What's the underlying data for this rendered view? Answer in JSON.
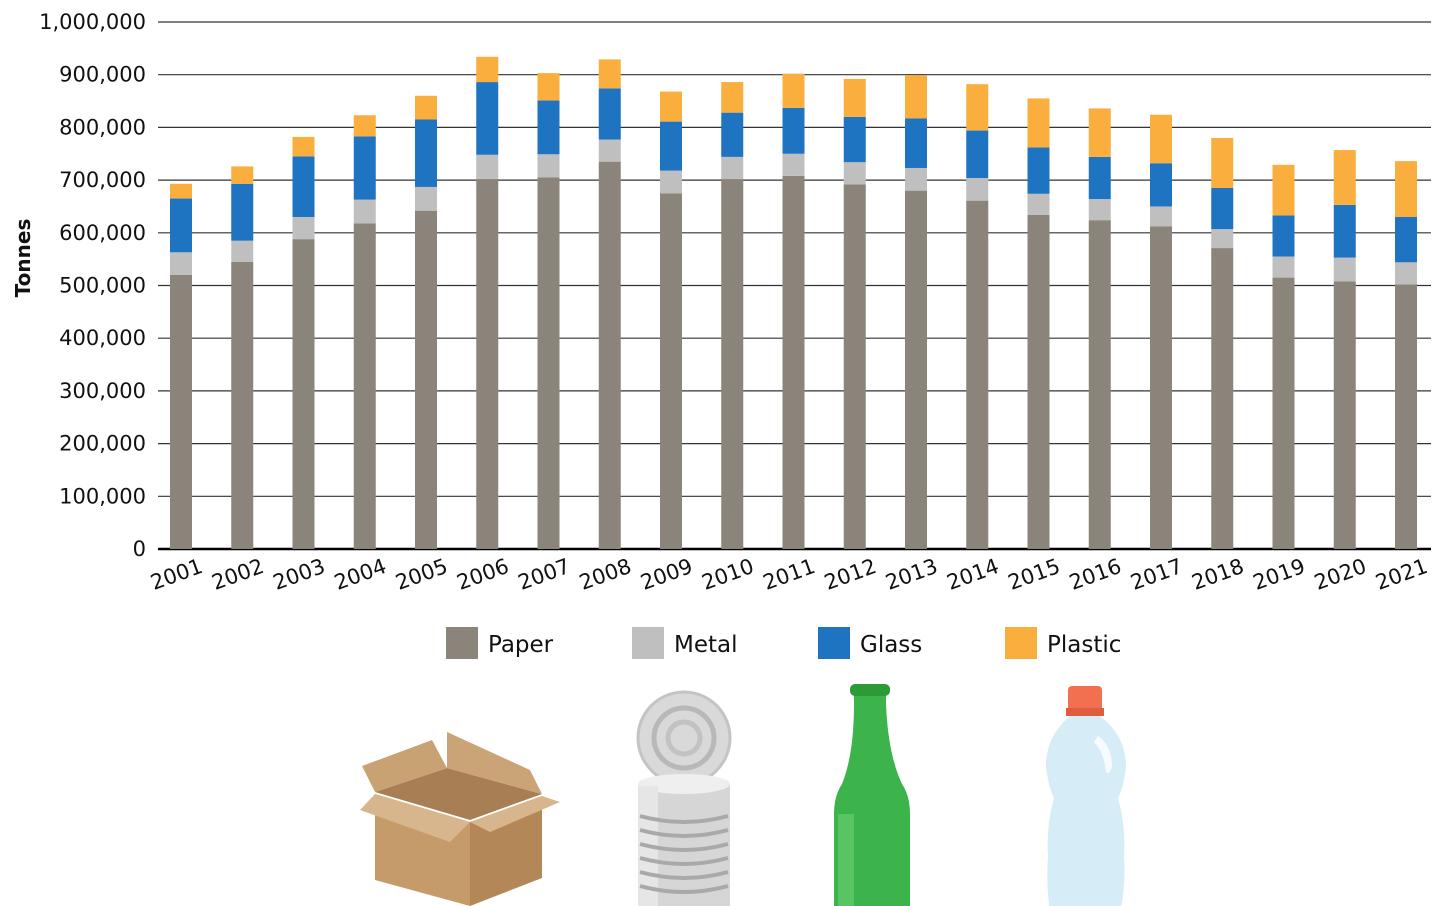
{
  "chart_data": {
    "type": "bar",
    "stacked": true,
    "title": "",
    "xlabel": "",
    "ylabel": "Tonnes",
    "ylim": [
      0,
      1000000
    ],
    "yticks": [
      0,
      100000,
      200000,
      300000,
      400000,
      500000,
      600000,
      700000,
      800000,
      900000,
      1000000
    ],
    "ytick_labels": [
      "0",
      "100,000",
      "200,000",
      "300,000",
      "400,000",
      "500,000",
      "600,000",
      "700,000",
      "800,000",
      "900,000",
      "1,000,000"
    ],
    "grid": "horizontal",
    "legend_position": "bottom",
    "categories": [
      "2001",
      "2002",
      "2003",
      "2004",
      "2005",
      "2006",
      "2007",
      "2008",
      "2009",
      "2010",
      "2011",
      "2012",
      "2013",
      "2014",
      "2015",
      "2016",
      "2017",
      "2018",
      "2019",
      "2020",
      "2021"
    ],
    "series": [
      {
        "name": "Paper",
        "color": "#8a847b",
        "values": [
          520000,
          545000,
          588000,
          618000,
          642000,
          702000,
          705000,
          735000,
          675000,
          702000,
          708000,
          692000,
          680000,
          661000,
          634000,
          624000,
          612000,
          571000,
          515000,
          508000,
          502000
        ]
      },
      {
        "name": "Metal",
        "color": "#bfbfbf",
        "values": [
          43000,
          40000,
          42000,
          45000,
          45000,
          46000,
          44000,
          42000,
          43000,
          42000,
          42000,
          42000,
          43000,
          43000,
          40000,
          40000,
          38000,
          36000,
          40000,
          45000,
          42000
        ]
      },
      {
        "name": "Glass",
        "color": "#1f74c1",
        "values": [
          102000,
          108000,
          115000,
          120000,
          128000,
          138000,
          102000,
          97000,
          93000,
          84000,
          87000,
          86000,
          94000,
          90000,
          88000,
          80000,
          82000,
          78000,
          78000,
          100000,
          86000
        ]
      },
      {
        "name": "Plastic",
        "color": "#f9ae3e",
        "values": [
          28000,
          33000,
          37000,
          40000,
          45000,
          48000,
          52000,
          55000,
          57000,
          58000,
          65000,
          72000,
          82000,
          88000,
          93000,
          92000,
          92000,
          95000,
          96000,
          104000,
          106000
        ]
      }
    ]
  },
  "illustrations": [
    {
      "icon": "cardboard-box-icon"
    },
    {
      "icon": "tin-can-icon"
    },
    {
      "icon": "glass-bottle-icon"
    },
    {
      "icon": "plastic-bottle-icon"
    }
  ]
}
